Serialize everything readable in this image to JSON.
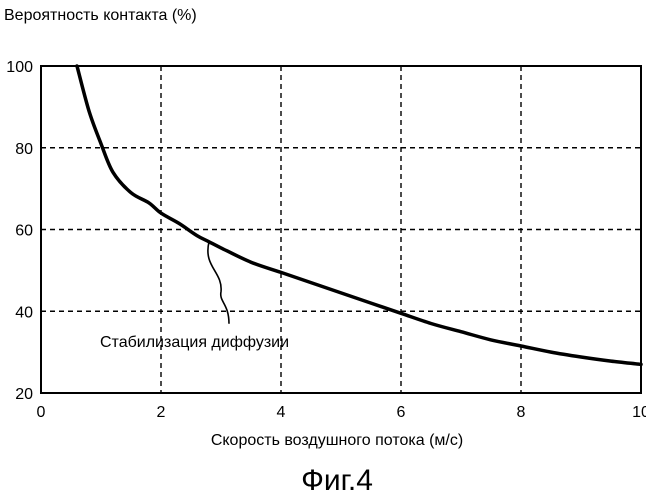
{
  "chart_data": {
    "type": "line",
    "ylabel": "Вероятность контакта (%)",
    "xlabel": "Скорость воздушного потока (м/с)",
    "figure_caption": "Фиг.4",
    "annotation": "Стабилизация диффузии",
    "xlim": [
      0,
      10
    ],
    "ylim": [
      20,
      100
    ],
    "x_ticks": [
      "0",
      "2",
      "4",
      "6",
      "8",
      "10"
    ],
    "y_ticks": [
      "20",
      "40",
      "60",
      "80",
      "100"
    ],
    "grid": "dashed",
    "series": [
      {
        "x": [
          0.6,
          0.8,
          1.0,
          1.2,
          1.5,
          1.8,
          2.0,
          2.3,
          2.6,
          2.8,
          3.0,
          3.5,
          4.0,
          4.5,
          5.0,
          5.5,
          6.0,
          6.5,
          7.0,
          7.5,
          8.0,
          8.5,
          9.0,
          9.5,
          10.0
        ],
        "y": [
          100,
          89,
          81,
          74,
          69,
          66.5,
          64,
          61.5,
          58.5,
          57,
          55.5,
          52,
          49.5,
          47,
          44.5,
          42,
          39.5,
          37,
          35,
          33,
          31.5,
          30,
          28.8,
          27.8,
          27
        ]
      }
    ]
  }
}
